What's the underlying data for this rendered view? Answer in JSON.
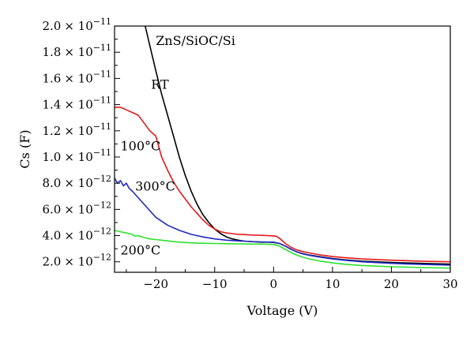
{
  "chart_data": {
    "type": "line",
    "title": "",
    "annotation": "ZnS/SiOC/Si",
    "xlabel": "Voltage (V)",
    "ylabel": "Cs (F)",
    "xlim": [
      -27,
      30
    ],
    "ylim": [
      1.2e-12,
      2e-11
    ],
    "x_ticks": [
      {
        "value": -20,
        "label": "−20"
      },
      {
        "value": -10,
        "label": "−10"
      },
      {
        "value": 0,
        "label": "0"
      },
      {
        "value": 10,
        "label": "10"
      },
      {
        "value": 20,
        "label": "20"
      },
      {
        "value": 30,
        "label": "30"
      }
    ],
    "y_ticks": [
      {
        "value": 2e-12,
        "mantissa": "2.0",
        "exponent": "−12"
      },
      {
        "value": 4e-12,
        "mantissa": "4.0",
        "exponent": "−12"
      },
      {
        "value": 6e-12,
        "mantissa": "6.0",
        "exponent": "−12"
      },
      {
        "value": 8e-12,
        "mantissa": "8.0",
        "exponent": "−12"
      },
      {
        "value": 1e-11,
        "mantissa": "1.0",
        "exponent": "−11"
      },
      {
        "value": 1.2e-11,
        "mantissa": "1.2",
        "exponent": "−11"
      },
      {
        "value": 1.4e-11,
        "mantissa": "1.4",
        "exponent": "−11"
      },
      {
        "value": 1.6e-11,
        "mantissa": "1.6",
        "exponent": "−11"
      },
      {
        "value": 1.8e-11,
        "mantissa": "1.8",
        "exponent": "−11"
      },
      {
        "value": 2e-11,
        "mantissa": "2.0",
        "exponent": "−11"
      }
    ],
    "tick_multiplier": "× 10",
    "grid": false,
    "series": [
      {
        "name": "RT",
        "color": "#000000",
        "label_x": -20.8,
        "label_y": 1.52e-11,
        "x": [
          -21.8,
          -21,
          -20,
          -19,
          -18,
          -17,
          -16,
          -15,
          -14,
          -13,
          -12,
          -11,
          -10,
          -9,
          -8,
          -7,
          -6,
          -5,
          -4,
          -3,
          -2,
          -1,
          0,
          1,
          2,
          3,
          4,
          5,
          6,
          8,
          10,
          12,
          15,
          20,
          25,
          30
        ],
        "y": [
          2e-11,
          1.85e-11,
          1.66e-11,
          1.48e-11,
          1.32e-11,
          1.16e-11,
          1e-11,
          8.6e-12,
          7.4e-12,
          6.4e-12,
          5.6e-12,
          5e-12,
          4.5e-12,
          4.15e-12,
          3.9e-12,
          3.75e-12,
          3.65e-12,
          3.58e-12,
          3.55e-12,
          3.52e-12,
          3.5e-12,
          3.5e-12,
          3.48e-12,
          3.4e-12,
          3.2e-12,
          2.95e-12,
          2.75e-12,
          2.62e-12,
          2.52e-12,
          2.38e-12,
          2.25e-12,
          2.15e-12,
          2.05e-12,
          1.95e-12,
          1.88e-12,
          1.82e-12
        ]
      },
      {
        "name": "100°C",
        "color": "#e31a1c",
        "label_x": -26,
        "label_y": 1.05e-11,
        "x": [
          -27,
          -26,
          -25,
          -24,
          -23,
          -22.5,
          -22,
          -21,
          -20,
          -19.5,
          -19,
          -18,
          -17,
          -16,
          -15,
          -14,
          -13,
          -12,
          -11,
          -10,
          -9,
          -8,
          -7,
          -6,
          -5,
          -4,
          -3,
          -2,
          -1,
          0,
          0.5,
          1,
          2,
          3,
          4,
          5,
          6,
          8,
          10,
          12,
          15,
          20,
          25,
          30
        ],
        "y": [
          1.38e-11,
          1.38e-11,
          1.36e-11,
          1.34e-11,
          1.32e-11,
          1.29e-11,
          1.26e-11,
          1.2e-11,
          1.16e-11,
          1.08e-11,
          1e-11,
          9e-12,
          8.1e-12,
          7.4e-12,
          6.8e-12,
          6.2e-12,
          5.7e-12,
          5.2e-12,
          4.8e-12,
          4.5e-12,
          4.3e-12,
          4.2e-12,
          4.15e-12,
          4.1e-12,
          4.08e-12,
          4.05e-12,
          4.03e-12,
          4.02e-12,
          4e-12,
          3.98e-12,
          3.95e-12,
          3.8e-12,
          3.4e-12,
          3.1e-12,
          2.9e-12,
          2.78e-12,
          2.68e-12,
          2.52e-12,
          2.4e-12,
          2.32e-12,
          2.22e-12,
          2.12e-12,
          2.05e-12,
          2e-12
        ]
      },
      {
        "name": "300°C",
        "color": "#1f2ac2",
        "label_x": -23.5,
        "label_y": 7.45e-12,
        "x": [
          -27,
          -26.5,
          -26,
          -25.5,
          -25,
          -24.5,
          -24,
          -23,
          -22,
          -21,
          -20,
          -19,
          -18,
          -16,
          -14,
          -12,
          -10,
          -8,
          -6,
          -4,
          -2,
          0,
          1,
          2,
          3,
          4,
          5,
          6,
          8,
          10,
          12,
          15,
          20,
          25,
          30
        ],
        "y": [
          8.4e-12,
          8e-12,
          8.2e-12,
          7.8e-12,
          8e-12,
          7.6e-12,
          7.4e-12,
          6.9e-12,
          6.4e-12,
          5.9e-12,
          5.4e-12,
          5.1e-12,
          4.8e-12,
          4.4e-12,
          4.1e-12,
          3.9e-12,
          3.75e-12,
          3.65e-12,
          3.6e-12,
          3.55e-12,
          3.52e-12,
          3.5e-12,
          3.4e-12,
          3.2e-12,
          2.95e-12,
          2.75e-12,
          2.6e-12,
          2.5e-12,
          2.35e-12,
          2.22e-12,
          2.12e-12,
          2e-12,
          1.88e-12,
          1.8e-12,
          1.75e-12
        ]
      },
      {
        "name": "200°C",
        "color": "#2fe02f",
        "label_x": -26,
        "label_y": 2.55e-12,
        "x": [
          -27,
          -26,
          -25,
          -24,
          -23.5,
          -23,
          -22,
          -21,
          -20,
          -18,
          -16,
          -14,
          -12,
          -10,
          -8,
          -6,
          -4,
          -2,
          0,
          1,
          2,
          3,
          4,
          5,
          6,
          8,
          10,
          12,
          15,
          20,
          25,
          30
        ],
        "y": [
          4.4e-12,
          4.3e-12,
          4.2e-12,
          4.1e-12,
          3.95e-12,
          4e-12,
          3.85e-12,
          3.75e-12,
          3.7e-12,
          3.6e-12,
          3.5e-12,
          3.45e-12,
          3.42e-12,
          3.4e-12,
          3.38e-12,
          3.37e-12,
          3.36e-12,
          3.35e-12,
          3.33e-12,
          3.2e-12,
          2.95e-12,
          2.7e-12,
          2.5e-12,
          2.35e-12,
          2.22e-12,
          2.05e-12,
          1.92e-12,
          1.82e-12,
          1.72e-12,
          1.62e-12,
          1.56e-12,
          1.52e-12
        ]
      }
    ]
  }
}
